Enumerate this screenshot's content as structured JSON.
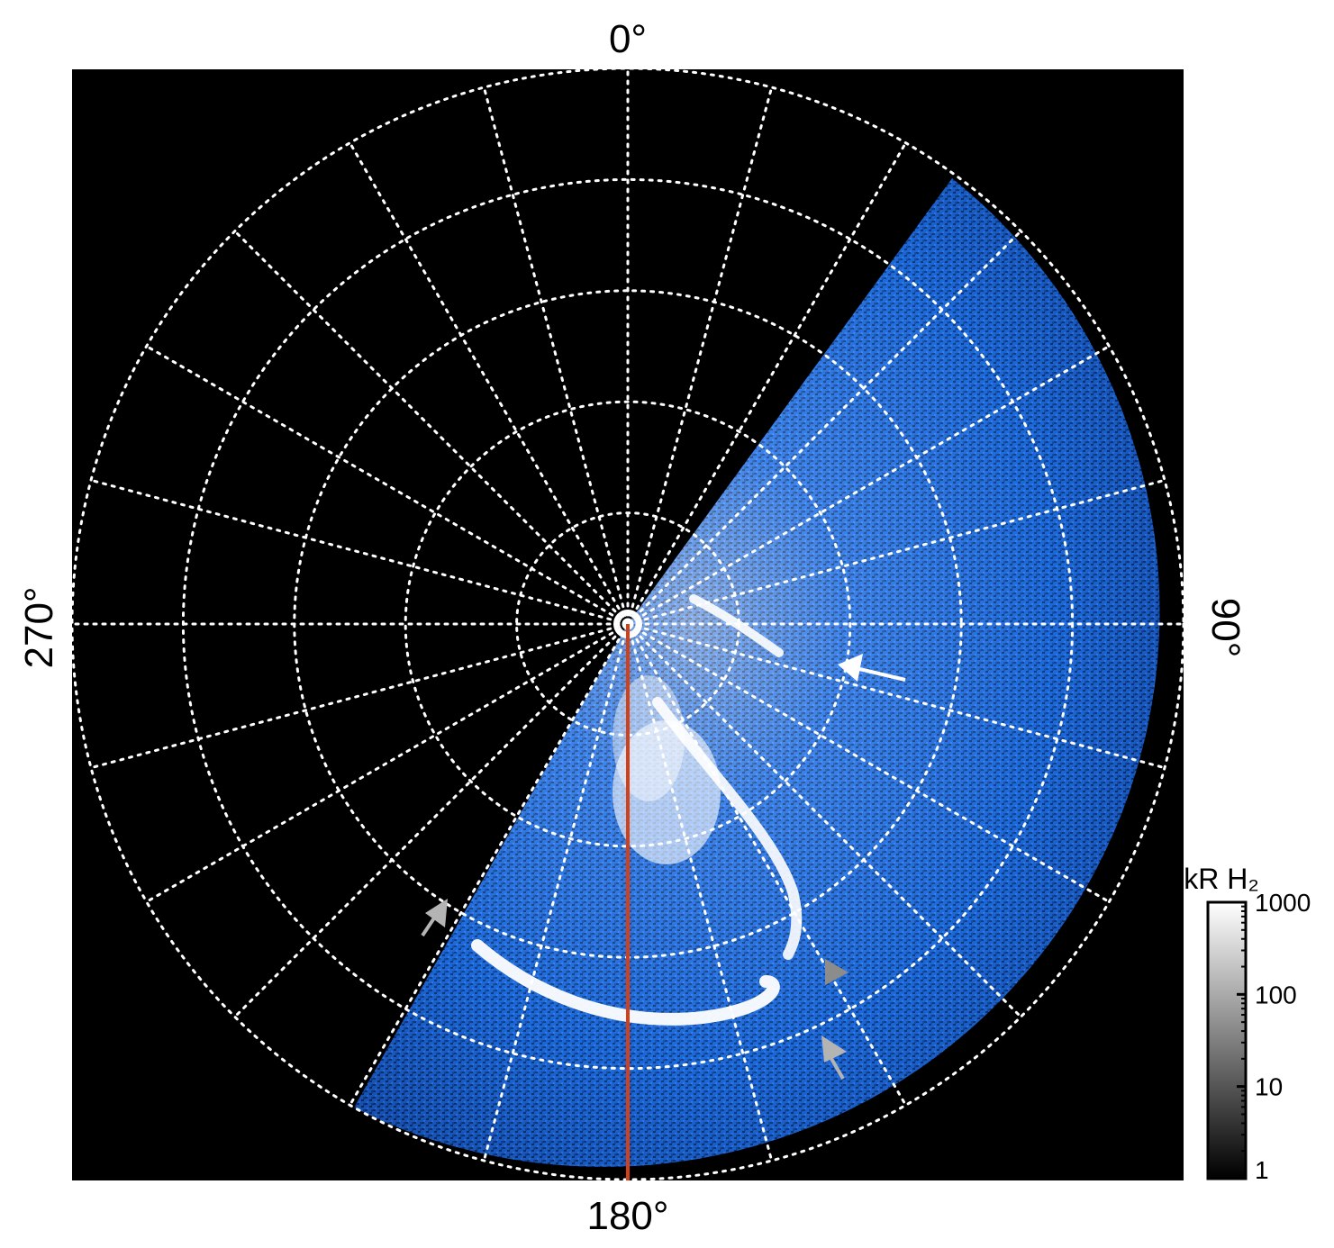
{
  "labels": {
    "top": "0°",
    "bottom": "180°",
    "left": "270°",
    "right": "90°"
  },
  "colorbar": {
    "title": "kR H₂",
    "scale": "log",
    "range": [
      1,
      1000
    ],
    "ticks": [
      {
        "value": 1,
        "label": "1"
      },
      {
        "value": 10,
        "label": "10"
      },
      {
        "value": 100,
        "label": "100"
      },
      {
        "value": 1000,
        "label": "1000"
      }
    ]
  },
  "colors": {
    "background": "#000000",
    "aurora_dim": "#0a2a6e",
    "aurora_mid": "#1e6fe0",
    "aurora_bright": "#ffffff",
    "grid": "#ffffff",
    "meridian_line": "#d2401a",
    "arrow_white": "#ffffff",
    "arrow_gray": "#b4b4b4",
    "arrowhead_dark_gray": "#8c8c8c"
  },
  "grid": {
    "rings": 5,
    "meridian_spacing_deg": 15,
    "style": "dotted"
  }
}
